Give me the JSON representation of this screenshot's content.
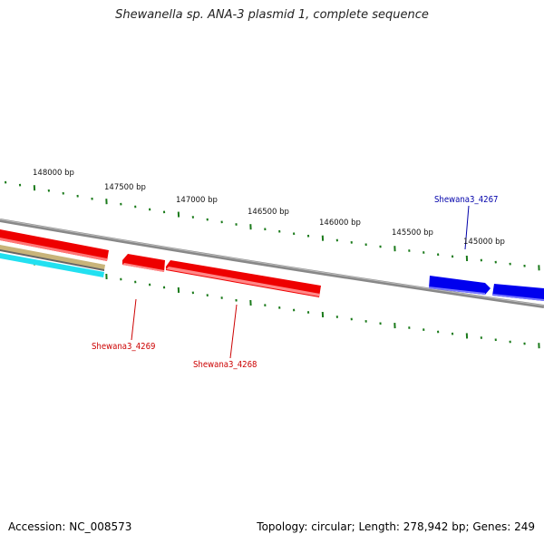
{
  "title": "Shewanella sp. ANA-3 plasmid 1, complete sequence",
  "footer": {
    "accession": "Accession: NC_008573",
    "summary": "Topology: circular; Length: 278,942 bp; Genes: 249"
  },
  "colors": {
    "tick": "#1a7a1a",
    "backbone": "#888888",
    "forward_gene": "#0000ee",
    "reverse_gene": "#ee0000",
    "label_forward": "#0000aa",
    "label_reverse": "#cc0000",
    "track_tan": "#c8b47a",
    "track_cyan": "#22e0f0"
  },
  "ruler_labels": [
    "148000 bp",
    "147500 bp",
    "147000 bp",
    "146500 bp",
    "146000 bp",
    "145500 bp",
    "145000 bp"
  ],
  "genes": [
    {
      "name": "Shewana3_4267",
      "strand": "forward"
    },
    {
      "name": "Shewana3_4268",
      "strand": "reverse"
    },
    {
      "name": "Shewana3_4269",
      "strand": "reverse"
    }
  ]
}
